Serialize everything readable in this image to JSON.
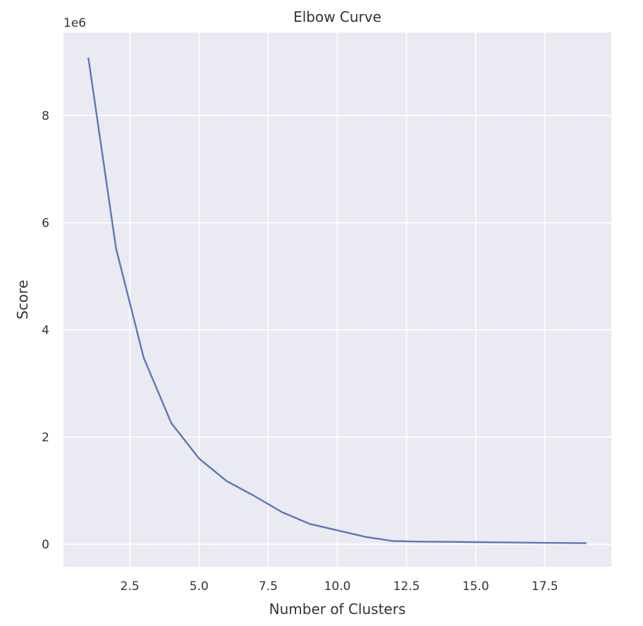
{
  "chart_data": {
    "type": "line",
    "title": "Elbow Curve",
    "xlabel": "Number of Clusters",
    "ylabel": "Score",
    "y_offset_label": "1e6",
    "xlim": [
      0.1,
      19.9
    ],
    "ylim": [
      -0.42,
      9.55
    ],
    "x_ticks": [
      2.5,
      5.0,
      7.5,
      10.0,
      12.5,
      15.0,
      17.5
    ],
    "x_tick_labels": [
      "2.5",
      "5.0",
      "7.5",
      "10.0",
      "12.5",
      "15.0",
      "17.5"
    ],
    "y_ticks": [
      0,
      2,
      4,
      6,
      8
    ],
    "y_tick_labels": [
      "0",
      "2",
      "4",
      "6",
      "8"
    ],
    "grid": true,
    "legend": false,
    "colors": {
      "plot_background": "#eaeaf2",
      "grid": "#ffffff",
      "line": "#5a78b8",
      "text": "#333333"
    },
    "series": [
      {
        "x": [
          1,
          2,
          3,
          4,
          5,
          6,
          7,
          8,
          9,
          10,
          11,
          12,
          13,
          14,
          15,
          16,
          17,
          18,
          19
        ],
        "values": [
          9.08,
          5.52,
          3.48,
          2.26,
          1.6,
          1.18,
          0.9,
          0.6,
          0.38,
          0.26,
          0.14,
          0.06,
          0.05,
          0.045,
          0.04,
          0.035,
          0.03,
          0.025,
          0.02
        ]
      }
    ]
  }
}
